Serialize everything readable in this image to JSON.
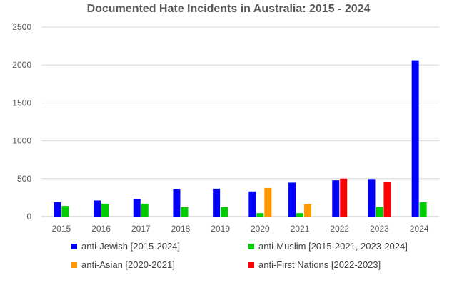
{
  "chart_data": {
    "type": "bar",
    "title": "Documented Hate Incidents in Australia: 2015 - 2024",
    "xlabel": "",
    "ylabel": "",
    "ylim": [
      0,
      2500
    ],
    "yticks": [
      0,
      500,
      1000,
      1500,
      2000,
      2500
    ],
    "grid": true,
    "legend_position": "bottom",
    "categories": [
      "2015",
      "2016",
      "2017",
      "2018",
      "2019",
      "2020",
      "2021",
      "2022",
      "2023",
      "2024"
    ],
    "series": [
      {
        "name": "anti-Jewish [2015-2024]",
        "color": "#0000ff",
        "values": [
          190,
          212,
          230,
          366,
          368,
          331,
          447,
          478,
          495,
          2062
        ]
      },
      {
        "name": "anti-Muslim [2015-2021, 2023-2024]",
        "color": "#00cc00",
        "values": [
          140,
          170,
          170,
          125,
          125,
          45,
          45,
          null,
          125,
          190
        ]
      },
      {
        "name": "anti-Asian [2020-2021]",
        "color": "#ff9900",
        "values": [
          null,
          null,
          null,
          null,
          null,
          377,
          165,
          null,
          null,
          null
        ]
      },
      {
        "name": "anti-First Nations [2022-2023]",
        "color": "#ff0000",
        "values": [
          null,
          null,
          null,
          null,
          null,
          null,
          null,
          500,
          453,
          null
        ]
      }
    ]
  }
}
